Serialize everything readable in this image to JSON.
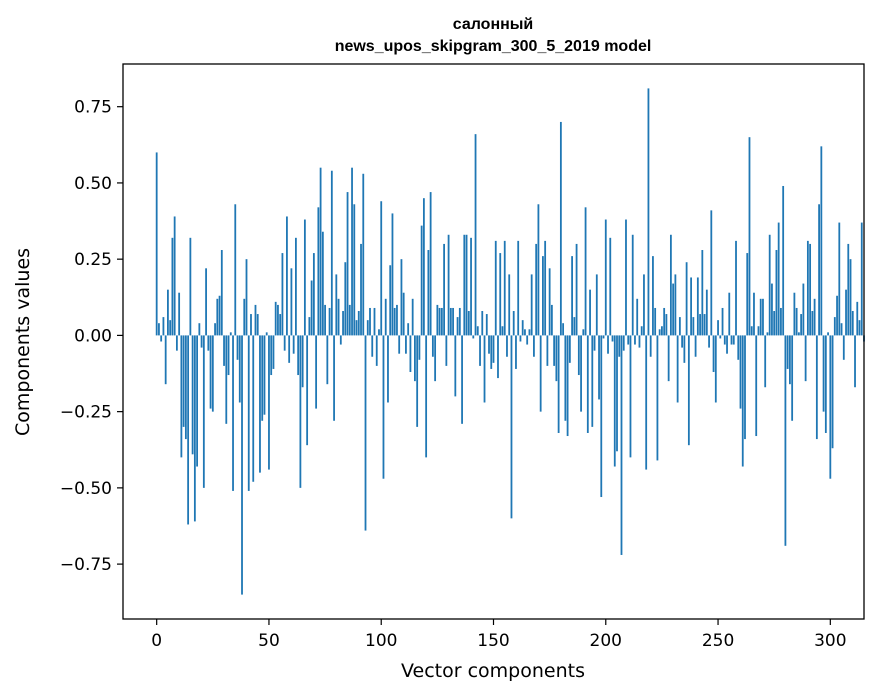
{
  "chart_data": {
    "type": "bar",
    "title": "салонный",
    "subtitle": "news_upos_skipgram_300_5_2019 model",
    "xlabel": "Vector components",
    "ylabel": "Components values",
    "xlim": [
      -15,
      315
    ],
    "ylim": [
      -0.93,
      0.89
    ],
    "xticks": [
      0,
      50,
      100,
      150,
      200,
      250,
      300
    ],
    "yticks": [
      -0.75,
      -0.5,
      -0.25,
      0.0,
      0.25,
      0.5,
      0.75
    ],
    "ytick_labels": [
      "−0.75",
      "−0.50",
      "−0.25",
      "0.00",
      "0.25",
      "0.50",
      "0.75"
    ],
    "grid": false,
    "bar_color": "#1f77b4",
    "values": [
      0.6,
      0.04,
      -0.02,
      0.06,
      -0.16,
      0.15,
      0.05,
      0.32,
      0.39,
      -0.05,
      0.14,
      -0.4,
      -0.3,
      -0.34,
      -0.62,
      0.32,
      -0.39,
      -0.61,
      -0.43,
      0.04,
      -0.04,
      -0.5,
      0.22,
      -0.05,
      -0.24,
      -0.25,
      0.04,
      0.12,
      0.13,
      0.28,
      -0.1,
      -0.29,
      -0.13,
      0.01,
      -0.51,
      0.43,
      -0.08,
      -0.22,
      -0.85,
      0.12,
      0.25,
      -0.51,
      0.07,
      -0.48,
      0.1,
      0.07,
      -0.45,
      -0.28,
      -0.26,
      0.01,
      -0.44,
      -0.13,
      -0.11,
      0.11,
      0.1,
      0.07,
      0.27,
      -0.05,
      0.39,
      -0.09,
      0.22,
      -0.06,
      0.32,
      -0.13,
      -0.5,
      -0.17,
      0.38,
      -0.36,
      0.06,
      0.18,
      0.27,
      -0.24,
      0.42,
      0.55,
      0.34,
      0.1,
      -0.16,
      0.09,
      0.54,
      -0.28,
      0.2,
      0.12,
      -0.03,
      0.08,
      0.24,
      0.47,
      0.1,
      0.55,
      0.43,
      0.05,
      0.08,
      0.3,
      0.53,
      -0.64,
      0.05,
      0.09,
      -0.07,
      0.09,
      -0.1,
      0.02,
      0.44,
      -0.47,
      0.12,
      -0.22,
      0.23,
      0.4,
      0.09,
      0.1,
      -0.06,
      0.25,
      0.14,
      -0.06,
      0.04,
      -0.12,
      0.12,
      -0.15,
      -0.3,
      -0.08,
      0.36,
      0.45,
      -0.4,
      0.28,
      0.47,
      -0.07,
      -0.15,
      0.1,
      0.09,
      0.09,
      0.3,
      -0.1,
      0.33,
      0.09,
      0.09,
      -0.2,
      0.06,
      0.09,
      -0.29,
      0.33,
      0.33,
      0.08,
      0.32,
      -0.01,
      0.66,
      0.03,
      -0.1,
      0.08,
      -0.22,
      0.07,
      -0.06,
      -0.11,
      -0.09,
      0.31,
      -0.14,
      0.27,
      0.03,
      0.31,
      -0.07,
      0.2,
      -0.6,
      0.08,
      -0.11,
      0.31,
      -0.02,
      0.05,
      0.02,
      -0.03,
      0.02,
      0.2,
      -0.07,
      0.3,
      0.43,
      -0.25,
      0.26,
      0.31,
      -0.1,
      0.22,
      0.1,
      -0.1,
      -0.15,
      -0.32,
      0.7,
      0.04,
      -0.28,
      -0.33,
      -0.09,
      0.26,
      0.06,
      0.3,
      -0.13,
      -0.25,
      0.02,
      0.42,
      -0.32,
      0.15,
      -0.3,
      -0.05,
      0.2,
      -0.21,
      -0.53,
      -0.01,
      0.38,
      -0.06,
      0.32,
      -0.02,
      -0.43,
      -0.38,
      -0.07,
      -0.72,
      -0.05,
      0.38,
      -0.03,
      -0.4,
      0.33,
      -0.03,
      0.12,
      -0.04,
      0.03,
      0.2,
      -0.44,
      0.81,
      -0.07,
      0.26,
      0.09,
      -0.41,
      0.02,
      0.03,
      0.09,
      0.07,
      -0.15,
      0.33,
      0.17,
      0.2,
      -0.22,
      0.06,
      -0.04,
      -0.09,
      0.24,
      -0.36,
      0.19,
      0.06,
      -0.07,
      0.19,
      0.07,
      0.28,
      0.07,
      0.15,
      -0.04,
      0.41,
      -0.12,
      -0.22,
      0.05,
      -0.01,
      0.09,
      -0.03,
      -0.06,
      0.14,
      -0.03,
      -0.03,
      0.31,
      -0.08,
      -0.24,
      -0.43,
      -0.34,
      0.27,
      0.65,
      0.03,
      0.14,
      -0.33,
      0.03,
      0.12,
      0.12,
      -0.17,
      0.01,
      0.33,
      0.17,
      0.08,
      0.28,
      0.37,
      0.09,
      0.49,
      -0.69,
      -0.11,
      -0.16,
      -0.28,
      0.14,
      0.09,
      0.01,
      0.07,
      0.17,
      -0.15,
      0.31,
      0.3,
      0.08,
      0.12,
      -0.34,
      0.43,
      0.62,
      -0.25,
      -0.32,
      0.01,
      -0.47,
      -0.37,
      0.06,
      0.13,
      0.37,
      0.04,
      -0.08,
      0.15,
      0.3,
      0.25,
      0.08,
      -0.17,
      0.11,
      0.05,
      0.37,
      -0.02
    ]
  }
}
